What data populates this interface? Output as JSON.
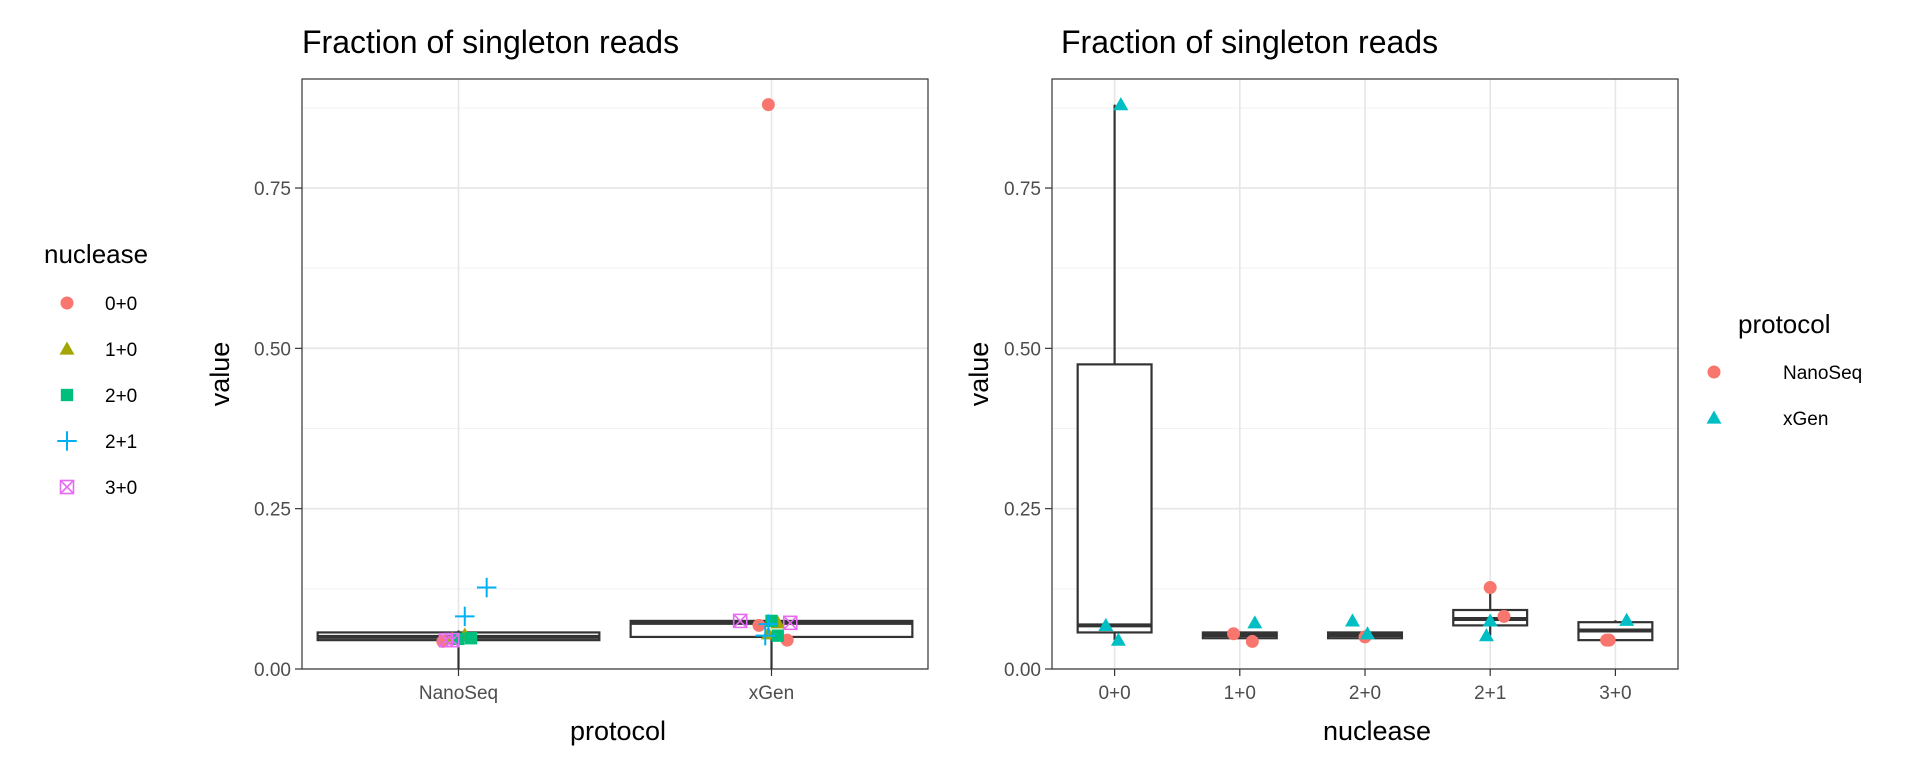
{
  "colors": {
    "nuclease": {
      "0+0": "#F8766D",
      "1+0": "#A3A500",
      "2+0": "#00BF7D",
      "2+1": "#00B0F6",
      "3+0": "#E76BF3"
    },
    "protocol": {
      "NanoSeq": "#F8766D",
      "xGen": "#00BFC4"
    }
  },
  "chart_data": [
    {
      "type": "box+scatter",
      "title": "Fraction of singleton reads",
      "xlabel": "protocol",
      "ylabel": "value",
      "categories": [
        "NanoSeq",
        "xGen"
      ],
      "ylim": [
        0,
        0.92
      ],
      "yticks": [
        0.0,
        0.25,
        0.5,
        0.75
      ],
      "ytick_labels": [
        "0.00",
        "0.25",
        "0.50",
        "0.75"
      ],
      "legend": {
        "title": "nuclease",
        "position": "left",
        "entries": [
          "0+0",
          "1+0",
          "2+0",
          "2+1",
          "3+0"
        ]
      },
      "boxes": [
        {
          "category": "NanoSeq",
          "lower": 0.0,
          "q1": 0.045,
          "median": 0.05,
          "q3": 0.057,
          "upper": 0.06
        },
        {
          "category": "xGen",
          "lower": 0.0,
          "q1": 0.05,
          "median": 0.072,
          "q3": 0.075,
          "upper": 0.078
        }
      ],
      "points": [
        {
          "category": "NanoSeq",
          "offset": -0.05,
          "value": 0.043,
          "group": "0+0"
        },
        {
          "category": "NanoSeq",
          "offset": -0.02,
          "value": 0.047,
          "group": "1+0"
        },
        {
          "category": "NanoSeq",
          "offset": 0.02,
          "value": 0.053,
          "group": "1+0"
        },
        {
          "category": "NanoSeq",
          "offset": 0.0,
          "value": 0.047,
          "group": "2+0"
        },
        {
          "category": "NanoSeq",
          "offset": 0.04,
          "value": 0.048,
          "group": "2+0"
        },
        {
          "category": "NanoSeq",
          "offset": 0.02,
          "value": 0.082,
          "group": "2+1"
        },
        {
          "category": "NanoSeq",
          "offset": 0.09,
          "value": 0.127,
          "group": "2+1"
        },
        {
          "category": "NanoSeq",
          "offset": -0.04,
          "value": 0.045,
          "group": "3+0"
        },
        {
          "category": "NanoSeq",
          "offset": -0.02,
          "value": 0.045,
          "group": "3+0"
        },
        {
          "category": "xGen",
          "offset": -0.01,
          "value": 0.88,
          "group": "0+0"
        },
        {
          "category": "xGen",
          "offset": -0.04,
          "value": 0.068,
          "group": "0+0"
        },
        {
          "category": "xGen",
          "offset": 0.05,
          "value": 0.045,
          "group": "0+0"
        },
        {
          "category": "xGen",
          "offset": -0.01,
          "value": 0.055,
          "group": "1+0"
        },
        {
          "category": "xGen",
          "offset": 0.02,
          "value": 0.072,
          "group": "1+0"
        },
        {
          "category": "xGen",
          "offset": 0.02,
          "value": 0.052,
          "group": "2+0"
        },
        {
          "category": "xGen",
          "offset": 0.0,
          "value": 0.075,
          "group": "2+0"
        },
        {
          "category": "xGen",
          "offset": -0.02,
          "value": 0.052,
          "group": "2+1"
        },
        {
          "category": "xGen",
          "offset": -0.01,
          "value": 0.07,
          "group": "2+1"
        },
        {
          "category": "xGen",
          "offset": -0.1,
          "value": 0.075,
          "group": "3+0"
        },
        {
          "category": "xGen",
          "offset": 0.06,
          "value": 0.072,
          "group": "3+0"
        }
      ]
    },
    {
      "type": "box+scatter",
      "title": "Fraction of singleton reads",
      "xlabel": "nuclease",
      "ylabel": "value",
      "categories": [
        "0+0",
        "1+0",
        "2+0",
        "2+1",
        "3+0"
      ],
      "ylim": [
        0,
        0.92
      ],
      "yticks": [
        0.0,
        0.25,
        0.5,
        0.75
      ],
      "ytick_labels": [
        "0.00",
        "0.25",
        "0.50",
        "0.75"
      ],
      "legend": {
        "title": "protocol",
        "position": "right",
        "entries": [
          "NanoSeq",
          "xGen"
        ]
      },
      "boxes": [
        {
          "category": "0+0",
          "lower": 0.045,
          "q1": 0.057,
          "median": 0.068,
          "q3": 0.475,
          "upper": 0.88
        },
        {
          "category": "1+0",
          "lower": 0.048,
          "q1": 0.048,
          "median": 0.053,
          "q3": 0.057,
          "upper": 0.057
        },
        {
          "category": "2+0",
          "lower": 0.048,
          "q1": 0.048,
          "median": 0.053,
          "q3": 0.057,
          "upper": 0.057
        },
        {
          "category": "2+1",
          "lower": 0.052,
          "q1": 0.068,
          "median": 0.078,
          "q3": 0.092,
          "upper": 0.127
        },
        {
          "category": "3+0",
          "lower": 0.045,
          "q1": 0.045,
          "median": 0.06,
          "q3": 0.073,
          "upper": 0.076
        }
      ],
      "points": [
        {
          "category": "0+0",
          "offset": 0.05,
          "value": 0.88,
          "group": "xGen"
        },
        {
          "category": "0+0",
          "offset": -0.07,
          "value": 0.068,
          "group": "xGen"
        },
        {
          "category": "0+0",
          "offset": 0.03,
          "value": 0.045,
          "group": "xGen"
        },
        {
          "category": "1+0",
          "offset": -0.05,
          "value": 0.055,
          "group": "NanoSeq"
        },
        {
          "category": "1+0",
          "offset": 0.12,
          "value": 0.072,
          "group": "xGen"
        },
        {
          "category": "1+0",
          "offset": 0.1,
          "value": 0.043,
          "group": "NanoSeq"
        },
        {
          "category": "2+0",
          "offset": 0.0,
          "value": 0.05,
          "group": "NanoSeq"
        },
        {
          "category": "2+0",
          "offset": -0.1,
          "value": 0.075,
          "group": "xGen"
        },
        {
          "category": "2+0",
          "offset": 0.02,
          "value": 0.055,
          "group": "xGen"
        },
        {
          "category": "2+1",
          "offset": 0.0,
          "value": 0.127,
          "group": "NanoSeq"
        },
        {
          "category": "2+1",
          "offset": 0.11,
          "value": 0.082,
          "group": "NanoSeq"
        },
        {
          "category": "2+1",
          "offset": 0.0,
          "value": 0.075,
          "group": "xGen"
        },
        {
          "category": "2+1",
          "offset": -0.03,
          "value": 0.052,
          "group": "xGen"
        },
        {
          "category": "3+0",
          "offset": -0.05,
          "value": 0.045,
          "group": "NanoSeq"
        },
        {
          "category": "3+0",
          "offset": 0.09,
          "value": 0.076,
          "group": "xGen"
        },
        {
          "category": "3+0",
          "offset": -0.07,
          "value": 0.045,
          "group": "NanoSeq"
        }
      ]
    }
  ]
}
